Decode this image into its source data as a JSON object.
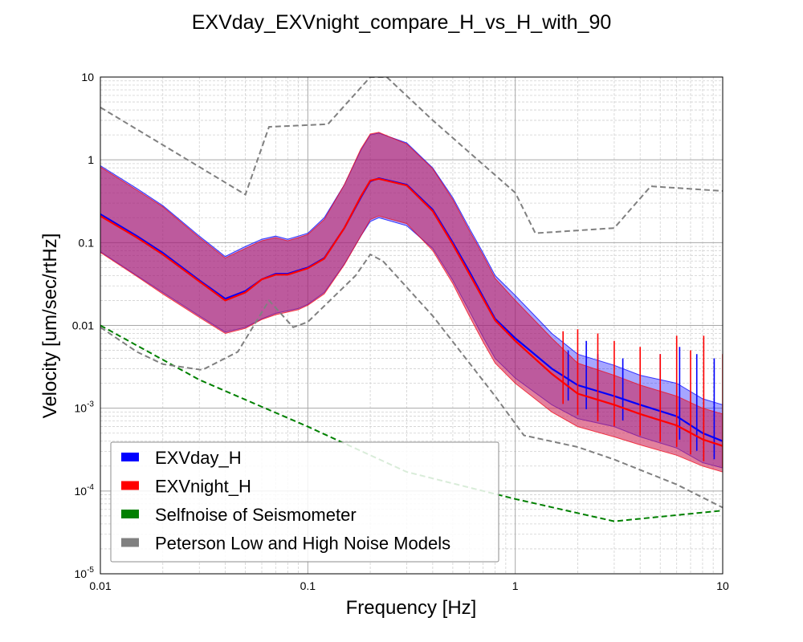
{
  "chart_data": {
    "type": "line",
    "title": "EXVday_EXVnight_compare_H_vs_H_with_90",
    "xlabel": "Frequency [Hz]",
    "ylabel": "Velocity [um/sec/rtHz]",
    "xscale": "log",
    "yscale": "log",
    "xlim": [
      0.01,
      10
    ],
    "ylim": [
      1e-05,
      10
    ],
    "grid": true,
    "legend_position": "lower-left",
    "x_ticks": [
      {
        "value": 0.01,
        "label": "0.01"
      },
      {
        "value": 0.1,
        "label": "0.1"
      },
      {
        "value": 1,
        "label": "1"
      },
      {
        "value": 10,
        "label": "10"
      }
    ],
    "y_ticks": [
      {
        "value": 10,
        "label": "10"
      },
      {
        "value": 1,
        "label": "1"
      },
      {
        "value": 0.1,
        "label": "0.1"
      },
      {
        "value": 0.01,
        "label": "0.01"
      },
      {
        "value": 0.001,
        "base": "10",
        "exp": "-3"
      },
      {
        "value": 0.0001,
        "base": "10",
        "exp": "-4"
      },
      {
        "value": 1e-05,
        "base": "10",
        "exp": "-5"
      }
    ],
    "series": [
      {
        "name": "EXVday_H",
        "color": "#0000ff",
        "kind": "median_with_band",
        "median": [
          [
            0.01,
            0.22
          ],
          [
            0.015,
            0.12
          ],
          [
            0.02,
            0.075
          ],
          [
            0.03,
            0.035
          ],
          [
            0.04,
            0.021
          ],
          [
            0.05,
            0.026
          ],
          [
            0.06,
            0.036
          ],
          [
            0.07,
            0.042
          ],
          [
            0.08,
            0.042
          ],
          [
            0.09,
            0.046
          ],
          [
            0.1,
            0.05
          ],
          [
            0.12,
            0.065
          ],
          [
            0.15,
            0.15
          ],
          [
            0.18,
            0.35
          ],
          [
            0.2,
            0.55
          ],
          [
            0.22,
            0.6
          ],
          [
            0.3,
            0.5
          ],
          [
            0.4,
            0.25
          ],
          [
            0.5,
            0.1
          ],
          [
            0.6,
            0.045
          ],
          [
            0.7,
            0.022
          ],
          [
            0.8,
            0.012
          ],
          [
            1,
            0.007
          ],
          [
            1.5,
            0.003
          ],
          [
            2,
            0.0019
          ],
          [
            3,
            0.0014
          ],
          [
            4,
            0.0011
          ],
          [
            6,
            0.0008
          ],
          [
            8,
            0.0005
          ],
          [
            10,
            0.0004
          ]
        ],
        "band_upper": [
          [
            0.01,
            0.85
          ],
          [
            0.015,
            0.45
          ],
          [
            0.02,
            0.28
          ],
          [
            0.03,
            0.12
          ],
          [
            0.04,
            0.068
          ],
          [
            0.05,
            0.09
          ],
          [
            0.06,
            0.11
          ],
          [
            0.07,
            0.12
          ],
          [
            0.08,
            0.11
          ],
          [
            0.09,
            0.12
          ],
          [
            0.1,
            0.13
          ],
          [
            0.12,
            0.2
          ],
          [
            0.15,
            0.5
          ],
          [
            0.18,
            1.3
          ],
          [
            0.2,
            2.0
          ],
          [
            0.22,
            2.1
          ],
          [
            0.3,
            1.6
          ],
          [
            0.4,
            0.8
          ],
          [
            0.5,
            0.35
          ],
          [
            0.6,
            0.15
          ],
          [
            0.7,
            0.075
          ],
          [
            0.8,
            0.04
          ],
          [
            1,
            0.023
          ],
          [
            1.5,
            0.008
          ],
          [
            2,
            0.0045
          ],
          [
            3,
            0.0033
          ],
          [
            4,
            0.0025
          ],
          [
            6,
            0.002
          ],
          [
            8,
            0.0013
          ],
          [
            10,
            0.0011
          ]
        ],
        "band_lower": [
          [
            0.01,
            0.078
          ],
          [
            0.015,
            0.04
          ],
          [
            0.02,
            0.025
          ],
          [
            0.03,
            0.013
          ],
          [
            0.04,
            0.0083
          ],
          [
            0.05,
            0.0095
          ],
          [
            0.06,
            0.012
          ],
          [
            0.07,
            0.014
          ],
          [
            0.08,
            0.015
          ],
          [
            0.09,
            0.016
          ],
          [
            0.1,
            0.018
          ],
          [
            0.12,
            0.025
          ],
          [
            0.15,
            0.055
          ],
          [
            0.18,
            0.12
          ],
          [
            0.2,
            0.18
          ],
          [
            0.22,
            0.2
          ],
          [
            0.3,
            0.16
          ],
          [
            0.4,
            0.085
          ],
          [
            0.5,
            0.035
          ],
          [
            0.6,
            0.015
          ],
          [
            0.7,
            0.0072
          ],
          [
            0.8,
            0.004
          ],
          [
            1,
            0.0023
          ],
          [
            1.5,
            0.0011
          ],
          [
            2,
            0.00075
          ],
          [
            3,
            0.0006
          ],
          [
            4,
            0.00045
          ],
          [
            6,
            0.00033
          ],
          [
            8,
            0.00022
          ],
          [
            10,
            0.00019
          ]
        ],
        "spikes": [
          [
            1.8,
            0.005
          ],
          [
            2.2,
            0.0065
          ],
          [
            2.5,
            0.0045
          ],
          [
            3.3,
            0.004
          ],
          [
            5,
            0.0045
          ],
          [
            6.2,
            0.0055
          ],
          [
            7.5,
            0.0045
          ],
          [
            9.1,
            0.004
          ]
        ]
      },
      {
        "name": "EXVnight_H",
        "color": "#ff0000",
        "kind": "median_with_band",
        "median": [
          [
            0.01,
            0.21
          ],
          [
            0.015,
            0.115
          ],
          [
            0.02,
            0.072
          ],
          [
            0.03,
            0.034
          ],
          [
            0.04,
            0.02
          ],
          [
            0.05,
            0.025
          ],
          [
            0.06,
            0.036
          ],
          [
            0.07,
            0.041
          ],
          [
            0.08,
            0.041
          ],
          [
            0.09,
            0.045
          ],
          [
            0.1,
            0.049
          ],
          [
            0.12,
            0.064
          ],
          [
            0.15,
            0.15
          ],
          [
            0.18,
            0.36
          ],
          [
            0.2,
            0.56
          ],
          [
            0.22,
            0.59
          ],
          [
            0.3,
            0.49
          ],
          [
            0.4,
            0.24
          ],
          [
            0.5,
            0.095
          ],
          [
            0.6,
            0.042
          ],
          [
            0.7,
            0.021
          ],
          [
            0.8,
            0.0115
          ],
          [
            1,
            0.0065
          ],
          [
            1.5,
            0.0026
          ],
          [
            2,
            0.0015
          ],
          [
            3,
            0.0011
          ],
          [
            4,
            0.00085
          ],
          [
            6,
            0.00062
          ],
          [
            8,
            0.00042
          ],
          [
            10,
            0.00035
          ]
        ],
        "band_upper": [
          [
            0.01,
            0.82
          ],
          [
            0.015,
            0.43
          ],
          [
            0.02,
            0.27
          ],
          [
            0.03,
            0.115
          ],
          [
            0.04,
            0.065
          ],
          [
            0.05,
            0.085
          ],
          [
            0.06,
            0.105
          ],
          [
            0.07,
            0.115
          ],
          [
            0.08,
            0.105
          ],
          [
            0.09,
            0.115
          ],
          [
            0.1,
            0.125
          ],
          [
            0.12,
            0.19
          ],
          [
            0.15,
            0.5
          ],
          [
            0.18,
            1.35
          ],
          [
            0.2,
            2.05
          ],
          [
            0.22,
            2.15
          ],
          [
            0.3,
            1.55
          ],
          [
            0.4,
            0.78
          ],
          [
            0.5,
            0.33
          ],
          [
            0.6,
            0.14
          ],
          [
            0.7,
            0.07
          ],
          [
            0.8,
            0.037
          ],
          [
            1,
            0.02
          ],
          [
            1.5,
            0.007
          ],
          [
            2,
            0.0035
          ],
          [
            3,
            0.0025
          ],
          [
            4,
            0.0019
          ],
          [
            6,
            0.0014
          ],
          [
            8,
            0.001
          ],
          [
            10,
            0.00085
          ]
        ],
        "band_lower": [
          [
            0.01,
            0.076
          ],
          [
            0.015,
            0.039
          ],
          [
            0.02,
            0.024
          ],
          [
            0.03,
            0.0125
          ],
          [
            0.04,
            0.008
          ],
          [
            0.05,
            0.0092
          ],
          [
            0.06,
            0.0118
          ],
          [
            0.07,
            0.0135
          ],
          [
            0.08,
            0.0145
          ],
          [
            0.09,
            0.0155
          ],
          [
            0.1,
            0.0175
          ],
          [
            0.12,
            0.024
          ],
          [
            0.15,
            0.054
          ],
          [
            0.18,
            0.12
          ],
          [
            0.2,
            0.19
          ],
          [
            0.22,
            0.21
          ],
          [
            0.3,
            0.17
          ],
          [
            0.4,
            0.08
          ],
          [
            0.5,
            0.032
          ],
          [
            0.6,
            0.013
          ],
          [
            0.7,
            0.0063
          ],
          [
            0.8,
            0.0035
          ],
          [
            1,
            0.002
          ],
          [
            1.5,
            0.0009
          ],
          [
            2,
            0.0006
          ],
          [
            3,
            0.00045
          ],
          [
            4,
            0.00036
          ],
          [
            6,
            0.00027
          ],
          [
            8,
            0.0002
          ],
          [
            10,
            0.00017
          ]
        ],
        "spikes": [
          [
            1.7,
            0.0085
          ],
          [
            2.0,
            0.009
          ],
          [
            2.5,
            0.008
          ],
          [
            3.0,
            0.0065
          ],
          [
            4.0,
            0.0055
          ],
          [
            5.0,
            0.0045
          ],
          [
            6.0,
            0.0075
          ],
          [
            7.0,
            0.005
          ],
          [
            8.1,
            0.0075
          ],
          [
            10,
            0.0045
          ]
        ]
      },
      {
        "name": "Selfnoise of Seismometer",
        "color": "#008000",
        "kind": "dashed",
        "points": [
          [
            0.01,
            0.01
          ],
          [
            0.03,
            0.0022
          ],
          [
            0.1,
            0.0006
          ],
          [
            0.3,
            0.00017
          ],
          [
            1,
            8e-05
          ],
          [
            3,
            4.3e-05
          ],
          [
            10,
            5.8e-05
          ]
        ]
      },
      {
        "name": "Peterson Low and High Noise Models",
        "color": "#808080",
        "kind": "dashed",
        "lines": [
          [
            [
              0.01,
              4.3
            ],
            [
              0.05,
              0.38
            ],
            [
              0.065,
              2.5
            ],
            [
              0.125,
              2.7
            ],
            [
              0.2,
              10
            ],
            [
              0.24,
              10
            ],
            [
              0.4,
              3.0
            ],
            [
              1.0,
              0.4
            ],
            [
              1.25,
              0.13
            ],
            [
              3.0,
              0.15
            ],
            [
              4.5,
              0.48
            ],
            [
              10,
              0.42
            ]
          ],
          [
            [
              0.01,
              0.0095
            ],
            [
              0.015,
              0.0048
            ],
            [
              0.02,
              0.0034
            ],
            [
              0.031,
              0.0029
            ],
            [
              0.046,
              0.0048
            ],
            [
              0.065,
              0.02
            ],
            [
              0.085,
              0.0095
            ],
            [
              0.1,
              0.011
            ],
            [
              0.17,
              0.04
            ],
            [
              0.2,
              0.072
            ],
            [
              0.23,
              0.06
            ],
            [
              0.4,
              0.013
            ],
            [
              0.8,
              0.0014
            ],
            [
              1.1,
              0.00047
            ],
            [
              2.0,
              0.00034
            ],
            [
              3.0,
              0.00024
            ],
            [
              6.0,
              0.00012
            ],
            [
              10,
              6.3e-05
            ]
          ]
        ]
      }
    ]
  }
}
